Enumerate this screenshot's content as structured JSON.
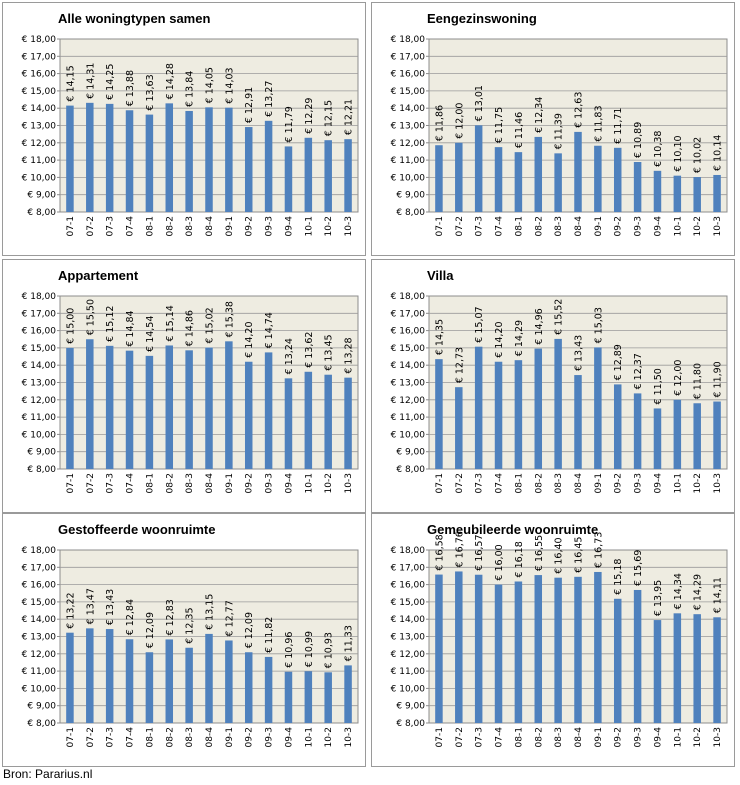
{
  "source": "Bron: Pararius.nl",
  "colors": {
    "bar": "#4f81bd",
    "plot_bg": "#eeece1",
    "grid": "#9a9a9a"
  },
  "chart_data": [
    {
      "type": "bar",
      "title": "Alle woningtypen samen",
      "categories": [
        "07-1",
        "07-2",
        "07-3",
        "07-4",
        "08-1",
        "08-2",
        "08-3",
        "08-4",
        "09-1",
        "09-2",
        "09-3",
        "09-4",
        "10-1",
        "10-2",
        "10-3"
      ],
      "values": [
        14.15,
        14.31,
        14.25,
        13.88,
        13.63,
        14.28,
        13.84,
        14.05,
        14.03,
        12.91,
        13.27,
        11.79,
        12.29,
        12.15,
        12.21
      ],
      "labels": [
        "€ 14,15",
        "€ 14,31",
        "€ 14,25",
        "€ 13,88",
        "€ 13,63",
        "€ 14,28",
        "€ 13,84",
        "€ 14,05",
        "€ 14,03",
        "€ 12,91",
        "€ 13,27",
        "€ 11,79",
        "€ 12,29",
        "€ 12,15",
        "€ 12,21"
      ],
      "yticks": [
        "€ 8,00",
        "€ 9,00",
        "€ 10,00",
        "€ 11,00",
        "€ 12,00",
        "€ 13,00",
        "€ 14,00",
        "€ 15,00",
        "€ 16,00",
        "€ 17,00",
        "€ 18,00"
      ],
      "ylim": [
        8,
        18
      ],
      "grid": true
    },
    {
      "type": "bar",
      "title": "Eengezinswoning",
      "categories": [
        "07-1",
        "07-2",
        "07-3",
        "07-4",
        "08-1",
        "08-2",
        "08-3",
        "08-4",
        "09-1",
        "09-2",
        "09-3",
        "09-4",
        "10-1",
        "10-2",
        "10-3"
      ],
      "values": [
        11.86,
        12.0,
        13.01,
        11.75,
        11.46,
        12.34,
        11.39,
        12.63,
        11.83,
        11.71,
        10.89,
        10.38,
        10.1,
        10.02,
        10.14
      ],
      "labels": [
        "€ 11,86",
        "€ 12,00",
        "€ 13,01",
        "€ 11,75",
        "€ 11,46",
        "€ 12,34",
        "€ 11,39",
        "€ 12,63",
        "€ 11,83",
        "€ 11,71",
        "€ 10,89",
        "€ 10,38",
        "€ 10,10",
        "€ 10,02",
        "€ 10,14"
      ],
      "yticks": [
        "€ 8,00",
        "€ 9,00",
        "€ 10,00",
        "€ 11,00",
        "€ 12,00",
        "€ 13,00",
        "€ 14,00",
        "€ 15,00",
        "€ 16,00",
        "€ 17,00",
        "€ 18,00"
      ],
      "ylim": [
        8,
        18
      ],
      "grid": true
    },
    {
      "type": "bar",
      "title": "Appartement",
      "categories": [
        "07-1",
        "07-2",
        "07-3",
        "07-4",
        "08-1",
        "08-2",
        "08-3",
        "08-4",
        "09-1",
        "09-2",
        "09-3",
        "09-4",
        "10-1",
        "10-2",
        "10-3"
      ],
      "values": [
        15.0,
        15.5,
        15.12,
        14.84,
        14.54,
        15.14,
        14.86,
        15.02,
        15.38,
        14.2,
        14.74,
        13.24,
        13.62,
        13.45,
        13.28
      ],
      "labels": [
        "€ 15,00",
        "€ 15,50",
        "€ 15,12",
        "€ 14,84",
        "€ 14,54",
        "€ 15,14",
        "€ 14,86",
        "€ 15,02",
        "€ 15,38",
        "€ 14,20",
        "€ 14,74",
        "€ 13,24",
        "€ 13,62",
        "€ 13,45",
        "€ 13,28"
      ],
      "yticks": [
        "€ 8,00",
        "€ 9,00",
        "€ 10,00",
        "€ 11,00",
        "€ 12,00",
        "€ 13,00",
        "€ 14,00",
        "€ 15,00",
        "€ 16,00",
        "€ 17,00",
        "€ 18,00"
      ],
      "ylim": [
        8,
        18
      ],
      "grid": true
    },
    {
      "type": "bar",
      "title": "Villa",
      "categories": [
        "07-1",
        "07-2",
        "07-3",
        "07-4",
        "08-1",
        "08-2",
        "08-3",
        "08-4",
        "09-1",
        "09-2",
        "09-3",
        "09-4",
        "10-1",
        "10-2",
        "10-3"
      ],
      "values": [
        14.35,
        12.73,
        15.07,
        14.2,
        14.29,
        14.96,
        15.52,
        13.43,
        15.03,
        12.89,
        12.37,
        11.5,
        12.0,
        11.8,
        11.9
      ],
      "labels": [
        "€ 14,35",
        "€ 12,73",
        "€ 15,07",
        "€ 14,20",
        "€ 14,29",
        "€ 14,96",
        "€ 15,52",
        "€ 13,43",
        "€ 15,03",
        "€ 12,89",
        "€ 12,37",
        "€ 11,50",
        "€ 12,00",
        "€ 11,80",
        "€ 11,90"
      ],
      "yticks": [
        "€ 8,00",
        "€ 9,00",
        "€ 10,00",
        "€ 11,00",
        "€ 12,00",
        "€ 13,00",
        "€ 14,00",
        "€ 15,00",
        "€ 16,00",
        "€ 17,00",
        "€ 18,00"
      ],
      "ylim": [
        8,
        18
      ],
      "grid": true
    },
    {
      "type": "bar",
      "title": "Gestoffeerde woonruimte",
      "categories": [
        "07-1",
        "07-2",
        "07-3",
        "07-4",
        "08-1",
        "08-2",
        "08-3",
        "08-4",
        "09-1",
        "09-2",
        "09-3",
        "09-4",
        "10-1",
        "10-2",
        "10-3"
      ],
      "values": [
        13.22,
        13.47,
        13.43,
        12.84,
        12.09,
        12.83,
        12.35,
        13.15,
        12.77,
        12.09,
        11.82,
        10.96,
        10.99,
        10.93,
        11.33
      ],
      "labels": [
        "€ 13,22",
        "€ 13,47",
        "€ 13,43",
        "€ 12,84",
        "€ 12,09",
        "€ 12,83",
        "€ 12,35",
        "€ 13,15",
        "€ 12,77",
        "€ 12,09",
        "€ 11,82",
        "€ 10,96",
        "€ 10,99",
        "€ 10,93",
        "€ 11,33"
      ],
      "yticks": [
        "€ 8,00",
        "€ 9,00",
        "€ 10,00",
        "€ 11,00",
        "€ 12,00",
        "€ 13,00",
        "€ 14,00",
        "€ 15,00",
        "€ 16,00",
        "€ 17,00",
        "€ 18,00"
      ],
      "ylim": [
        8,
        18
      ],
      "grid": true
    },
    {
      "type": "bar",
      "title": "Gemeubileerde woonruimte",
      "categories": [
        "07-1",
        "07-2",
        "07-3",
        "07-4",
        "08-1",
        "08-2",
        "08-3",
        "08-4",
        "09-1",
        "09-2",
        "09-3",
        "09-4",
        "10-1",
        "10-2",
        "10-3"
      ],
      "values": [
        16.58,
        16.76,
        16.57,
        16.0,
        16.18,
        16.55,
        16.4,
        16.45,
        16.73,
        15.18,
        15.69,
        13.95,
        14.34,
        14.29,
        14.11
      ],
      "labels": [
        "€ 16,58",
        "€ 16,76",
        "€ 16,57",
        "€ 16,00",
        "€ 16,18",
        "€ 16,55",
        "€ 16,40",
        "€ 16,45",
        "€ 16,73",
        "€ 15,18",
        "€ 15,69",
        "€ 13,95",
        "€ 14,34",
        "€ 14,29",
        "€ 14,11"
      ],
      "yticks": [
        "€ 8,00",
        "€ 9,00",
        "€ 10,00",
        "€ 11,00",
        "€ 12,00",
        "€ 13,00",
        "€ 14,00",
        "€ 15,00",
        "€ 16,00",
        "€ 17,00",
        "€ 18,00"
      ],
      "ylim": [
        8,
        18
      ],
      "grid": true
    }
  ]
}
